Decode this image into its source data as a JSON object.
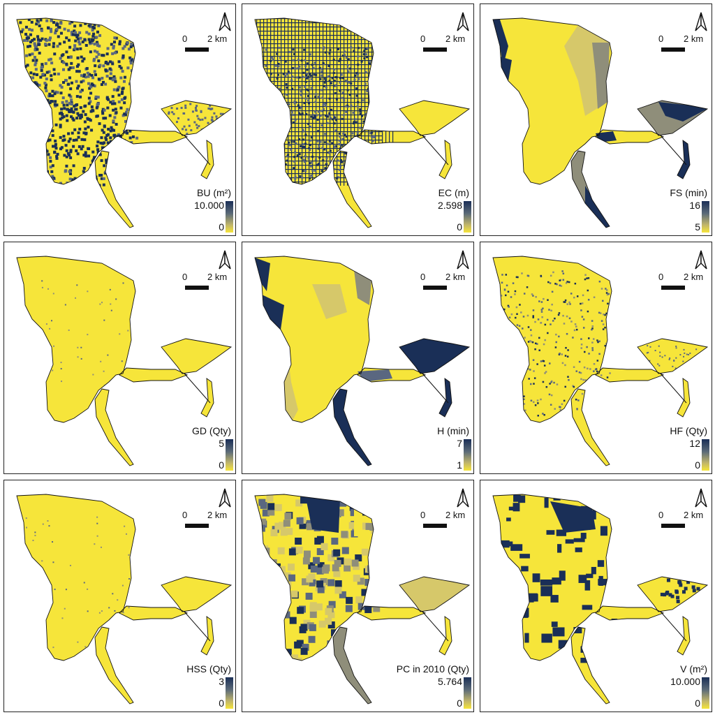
{
  "colors": {
    "low": "#f6e53a",
    "mid_low": "#d6c86a",
    "mid": "#8f8e7a",
    "mid_high": "#5a6780",
    "high": "#1a2f57",
    "outline": "#111111"
  },
  "scale_bar": {
    "start": "0",
    "end": "2 km"
  },
  "north_arrow_icon": "north-arrow-icon",
  "panels": [
    {
      "id": "bu",
      "title": "BU (m²)",
      "max": "10.000",
      "min": "0",
      "pattern": "dense"
    },
    {
      "id": "ec",
      "title": "EC (m)",
      "max": "2.598",
      "min": "0",
      "pattern": "streets"
    },
    {
      "id": "fs",
      "title": "FS (min)",
      "max": "16",
      "min": "5",
      "pattern": "zones"
    },
    {
      "id": "gd",
      "title": "GD (Qty)",
      "max": "5",
      "min": "0",
      "pattern": "sparse"
    },
    {
      "id": "h",
      "title": "H (min)",
      "max": "7",
      "min": "1",
      "pattern": "edges"
    },
    {
      "id": "hf",
      "title": "HF (Qty)",
      "max": "12",
      "min": "0",
      "pattern": "scatter"
    },
    {
      "id": "hss",
      "title": "HSS (Qty)",
      "max": "3",
      "min": "0",
      "pattern": "sparse"
    },
    {
      "id": "pc",
      "title": "PC in 2010 (Qty)",
      "max": "5.764",
      "min": "0",
      "pattern": "mosaic"
    },
    {
      "id": "v",
      "title": "V (m²)",
      "max": "10.000",
      "min": "0",
      "pattern": "patches"
    }
  ]
}
